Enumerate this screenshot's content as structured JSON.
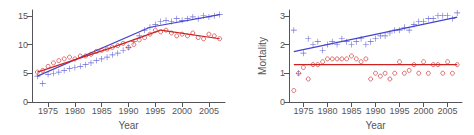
{
  "chart_data": [
    {
      "type": "scatter",
      "xlabel": "Year",
      "xlim": [
        1972,
        2008
      ],
      "xticks": [
        1975,
        1980,
        1985,
        1990,
        1995,
        2000,
        2005
      ],
      "ylim": [
        0,
        16
      ],
      "yticks": [
        0,
        5,
        10,
        15
      ],
      "grid": false,
      "series": [
        {
          "type": "scatter",
          "color": "#4444cc",
          "marker": "plus",
          "x": [
            1973,
            1974,
            1975,
            1976,
            1977,
            1978,
            1979,
            1980,
            1981,
            1982,
            1983,
            1984,
            1985,
            1986,
            1987,
            1988,
            1989,
            1990,
            1991,
            1992,
            1993,
            1994,
            1995,
            1996,
            1997,
            1998,
            1999,
            2000,
            2001,
            2002,
            2003,
            2004,
            2005,
            2006,
            2007
          ],
          "values": [
            4.5,
            3.2,
            4.8,
            5.0,
            5.2,
            5.5,
            5.8,
            6.0,
            6.2,
            6.5,
            6.8,
            7.2,
            7.5,
            7.8,
            8.2,
            8.5,
            9.0,
            9.5,
            10.5,
            11.5,
            12.5,
            13.0,
            13.5,
            14.0,
            14.2,
            14.0,
            14.5,
            14.2,
            14.5,
            14.8,
            14.5,
            15.0,
            14.8,
            15.0,
            15.2
          ]
        },
        {
          "type": "scatter",
          "color": "#cc2222",
          "marker": "open_circle",
          "x": [
            1973,
            1974,
            1975,
            1976,
            1977,
            1978,
            1979,
            1980,
            1981,
            1982,
            1983,
            1984,
            1985,
            1986,
            1987,
            1988,
            1989,
            1990,
            1991,
            1992,
            1993,
            1994,
            1995,
            1996,
            1997,
            1998,
            1999,
            2000,
            2001,
            2002,
            2003,
            2004,
            2005,
            2006,
            2007
          ],
          "values": [
            5.2,
            5.5,
            6.2,
            6.8,
            7.2,
            7.5,
            7.8,
            7.5,
            8.0,
            8.0,
            8.3,
            8.8,
            9.0,
            9.2,
            9.5,
            9.8,
            10.2,
            9.5,
            10.0,
            10.8,
            11.2,
            11.8,
            12.5,
            12.2,
            12.5,
            12.0,
            11.5,
            11.8,
            11.5,
            12.0,
            11.2,
            11.0,
            11.8,
            11.5,
            11.0
          ]
        },
        {
          "type": "line",
          "color": "#4444cc",
          "x": [
            1973,
            1994
          ],
          "values": [
            4.5,
            13.0
          ]
        },
        {
          "type": "line",
          "color": "#4444cc",
          "x": [
            1994,
            2007
          ],
          "values": [
            13.0,
            15.2
          ]
        },
        {
          "type": "line",
          "color": "#cc2222",
          "x": [
            1973,
            1987
          ],
          "values": [
            5.2,
            9.5
          ]
        },
        {
          "type": "line",
          "color": "#cc2222",
          "x": [
            1987,
            1996
          ],
          "values": [
            9.5,
            12.5
          ]
        },
        {
          "type": "line",
          "color": "#cc2222",
          "x": [
            1996,
            2007
          ],
          "values": [
            12.5,
            11.0
          ]
        }
      ]
    },
    {
      "type": "scatter",
      "xlabel": "Year",
      "ylabel": "Mortality",
      "xlim": [
        1972,
        2008
      ],
      "xticks": [
        1975,
        1980,
        1985,
        1990,
        1995,
        2000,
        2005
      ],
      "ylim": [
        0,
        3.2
      ],
      "yticks": [
        0,
        1,
        2,
        3
      ],
      "grid": false,
      "series": [
        {
          "type": "scatter",
          "color": "#4444cc",
          "marker": "plus",
          "x": [
            1973,
            1974,
            1975,
            1976,
            1977,
            1978,
            1979,
            1980,
            1981,
            1982,
            1983,
            1984,
            1985,
            1986,
            1987,
            1988,
            1989,
            1990,
            1991,
            1992,
            1993,
            1994,
            1995,
            1996,
            1997,
            1998,
            1999,
            2000,
            2001,
            2002,
            2003,
            2004,
            2005,
            2006,
            2007
          ],
          "values": [
            2.5,
            1.0,
            1.7,
            2.2,
            2.0,
            2.1,
            1.8,
            2.0,
            2.1,
            2.0,
            2.2,
            2.1,
            2.0,
            2.1,
            2.2,
            2.0,
            2.1,
            2.2,
            2.3,
            2.3,
            2.4,
            2.5,
            2.5,
            2.6,
            2.5,
            2.7,
            2.8,
            2.8,
            2.9,
            2.9,
            3.0,
            3.0,
            3.0,
            2.9,
            3.1
          ]
        },
        {
          "type": "scatter",
          "color": "#cc2222",
          "marker": "open_circle",
          "x": [
            1973,
            1974,
            1975,
            1976,
            1977,
            1978,
            1979,
            1980,
            1981,
            1982,
            1983,
            1984,
            1985,
            1986,
            1987,
            1988,
            1989,
            1990,
            1991,
            1992,
            1993,
            1994,
            1995,
            1996,
            1997,
            1998,
            1999,
            2000,
            2001,
            2002,
            2003,
            2004,
            2005,
            2006,
            2007
          ],
          "values": [
            0.4,
            1.0,
            1.2,
            0.8,
            1.3,
            1.3,
            1.4,
            1.5,
            1.5,
            1.5,
            1.5,
            1.5,
            1.6,
            1.5,
            1.4,
            1.5,
            0.8,
            1.0,
            0.9,
            1.0,
            0.8,
            1.0,
            1.4,
            1.0,
            1.1,
            1.3,
            1.0,
            1.4,
            1.0,
            1.3,
            1.3,
            1.0,
            1.4,
            1.0,
            1.3
          ]
        },
        {
          "type": "line",
          "color": "#4444cc",
          "x": [
            1973,
            2007
          ],
          "values": [
            1.75,
            2.95
          ]
        },
        {
          "type": "line",
          "color": "#cc2222",
          "x": [
            1973,
            2007
          ],
          "values": [
            1.3,
            1.3
          ]
        }
      ]
    }
  ]
}
